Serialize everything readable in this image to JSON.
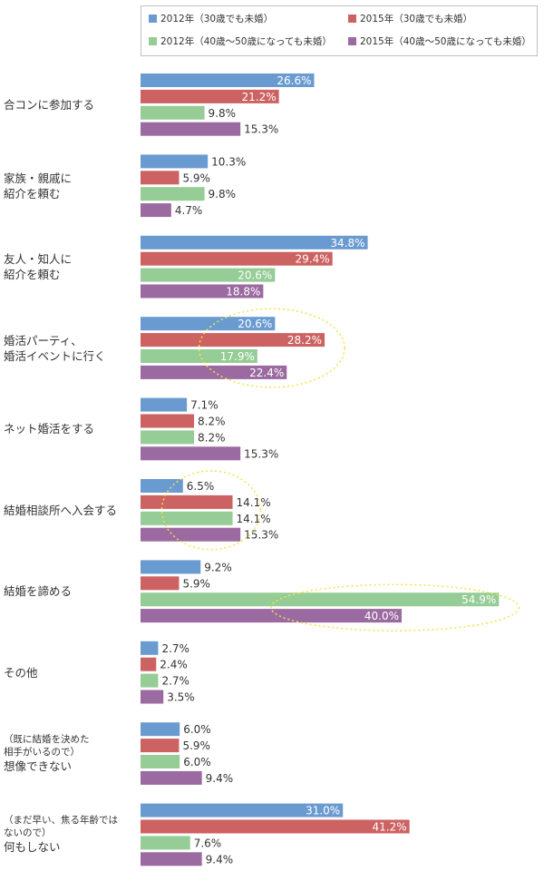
{
  "chart_data": {
    "type": "bar",
    "orientation": "horizontal",
    "xlim": [
      0,
      60
    ],
    "series": [
      {
        "name": "2012年（30歳でも未婚）",
        "color": "#6a9bd0",
        "values": [
          26.6,
          10.3,
          34.8,
          20.6,
          7.1,
          6.5,
          9.2,
          2.7,
          6.0,
          31.0
        ]
      },
      {
        "name": "2015年（30歳でも未婚）",
        "color": "#cd6262",
        "values": [
          21.2,
          5.9,
          29.4,
          28.2,
          8.2,
          14.1,
          5.9,
          2.4,
          5.9,
          41.2
        ]
      },
      {
        "name": "2012年（40歳〜50歳になっても未婚）",
        "color": "#96cc96",
        "values": [
          9.8,
          9.8,
          20.6,
          17.9,
          8.2,
          14.1,
          54.9,
          2.7,
          6.0,
          7.6
        ]
      },
      {
        "name": "2015年（40歳〜50歳になっても未婚）",
        "color": "#9b6aa0",
        "values": [
          15.3,
          4.7,
          18.8,
          22.4,
          15.3,
          15.3,
          40.0,
          3.5,
          9.4,
          9.4
        ]
      }
    ],
    "categories": [
      {
        "lines": [
          "合コンに参加する"
        ],
        "note": []
      },
      {
        "lines": [
          "家族・親戚に",
          "紹介を頼む"
        ],
        "note": []
      },
      {
        "lines": [
          "友人・知人に",
          "紹介を頼む"
        ],
        "note": []
      },
      {
        "lines": [
          "婚活パーティ、",
          "婚活イベントに行く"
        ],
        "note": []
      },
      {
        "lines": [
          "ネット婚活をする"
        ],
        "note": []
      },
      {
        "lines": [
          "結婚相談所へ入会する"
        ],
        "note": []
      },
      {
        "lines": [
          "結婚を諦める"
        ],
        "note": []
      },
      {
        "lines": [
          "その他"
        ],
        "note": []
      },
      {
        "lines": [
          "想像できない"
        ],
        "note": [
          "（既に結婚を決めた",
          "相手がいるので）"
        ]
      },
      {
        "lines": [
          "何もしない"
        ],
        "note": [
          "（まだ早い、焦る年齢では",
          "ないので）"
        ]
      }
    ],
    "labels_inside_threshold": 17,
    "highlight_color": "#f2e34a",
    "highlights": [
      {
        "category_index": 3,
        "series_from": 0,
        "series_to": 3
      },
      {
        "category_index": 5,
        "series_from": 0,
        "series_to": 3
      },
      {
        "category_index": 6,
        "series_from": 2,
        "series_to": 3
      }
    ]
  }
}
